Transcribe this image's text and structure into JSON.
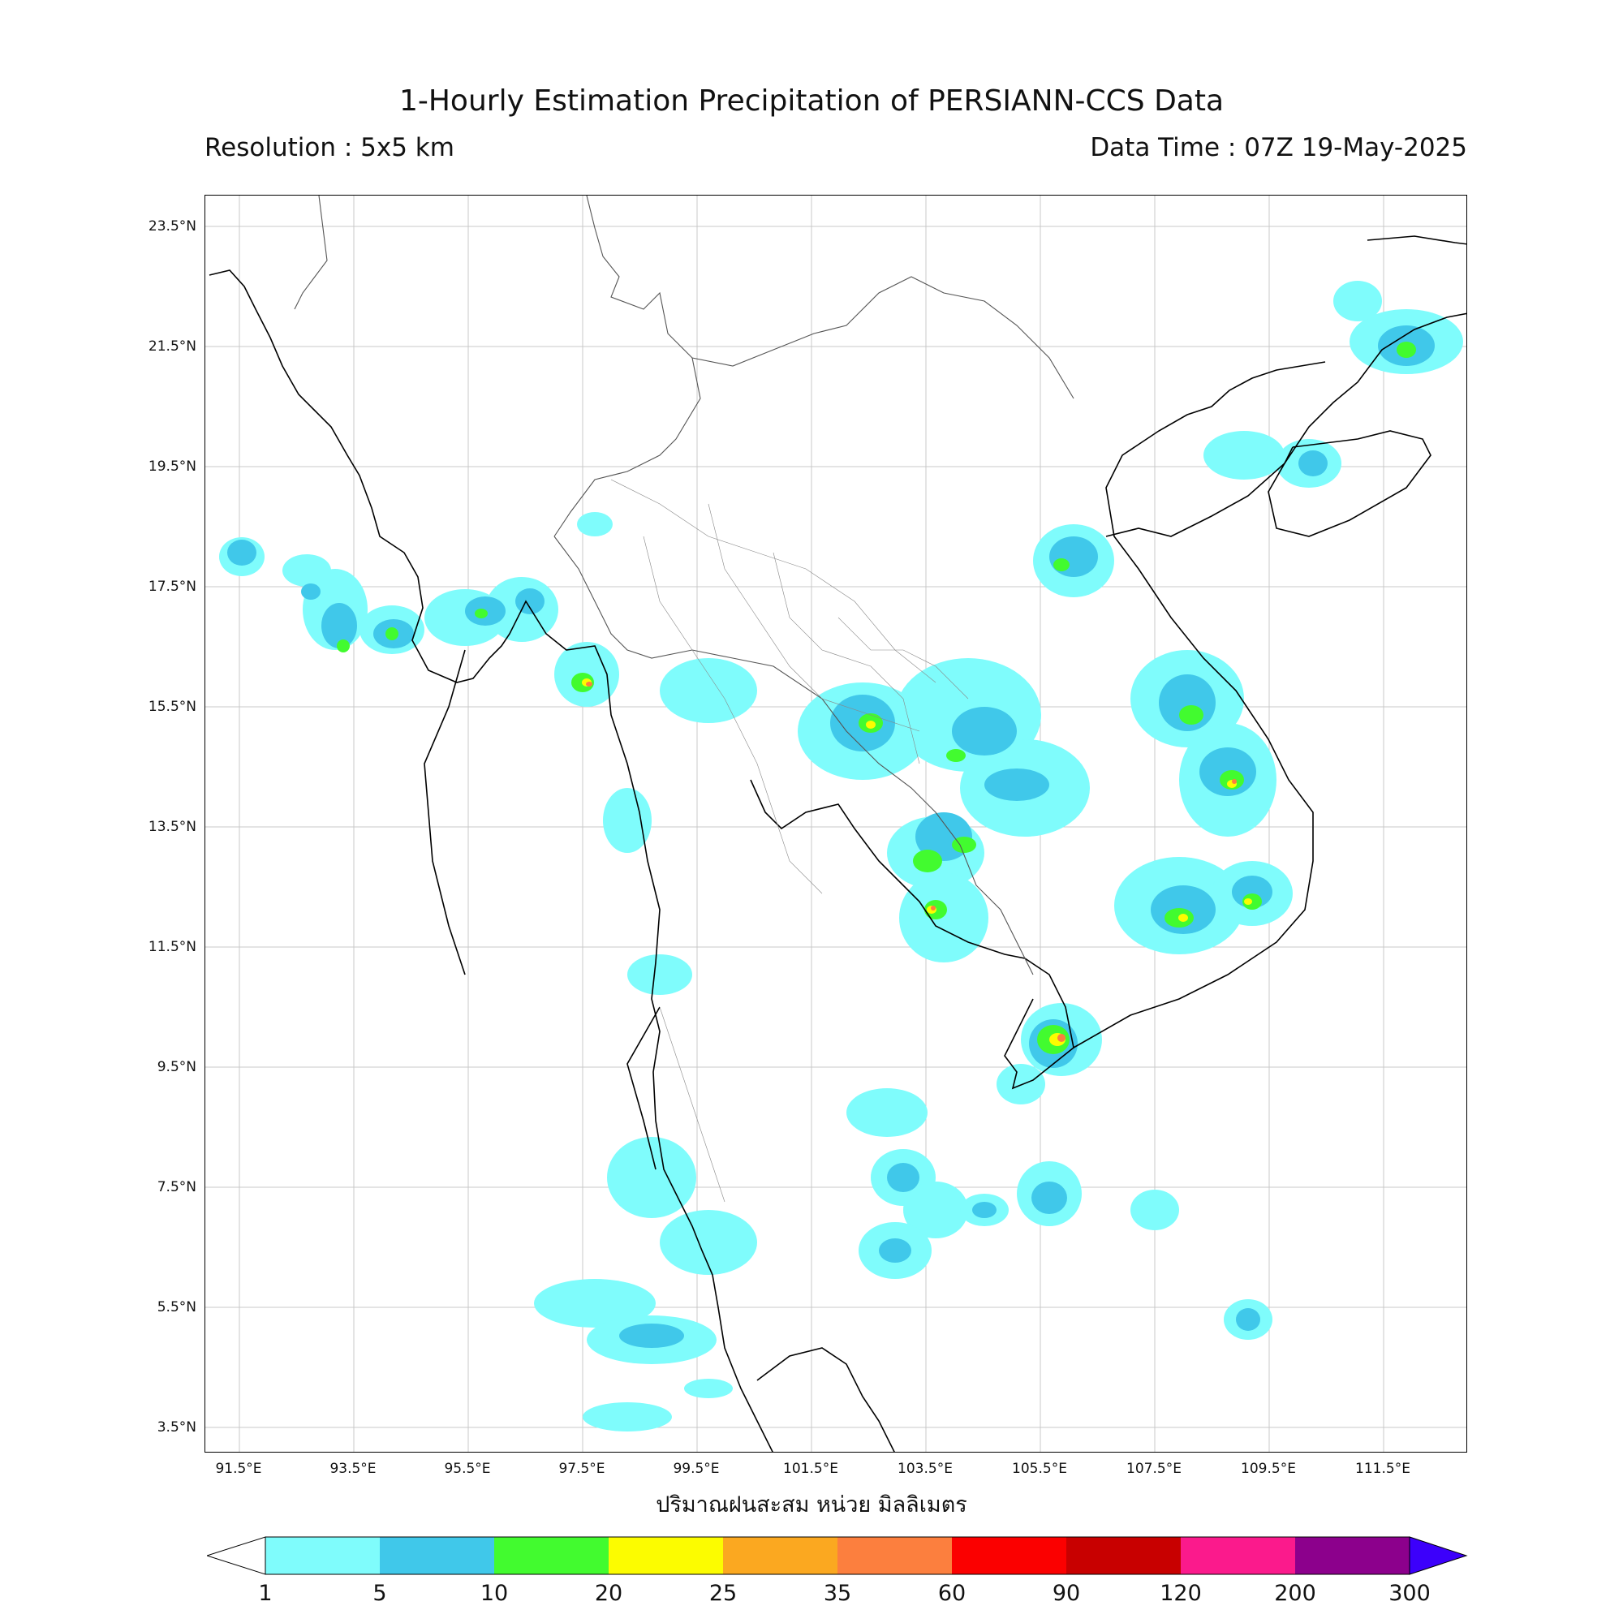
{
  "title": "1-Hourly Estimation Precipitation of PERSIANN-CCS Data",
  "resolution": "Resolution : 5x5 km",
  "data_time": "Data Time : 07Z 19-May-2025",
  "xlabel": "ปริมาณฝนสะสม หน่วย มิลลิเมตร",
  "lat_ticks": [
    "23.5°N",
    "21.5°N",
    "19.5°N",
    "17.5°N",
    "15.5°N",
    "13.5°N",
    "11.5°N",
    "9.5°N",
    "7.5°N",
    "5.5°N",
    "3.5°N"
  ],
  "lon_ticks": [
    "91.5°E",
    "93.5°E",
    "95.5°E",
    "97.5°E",
    "99.5°E",
    "101.5°E",
    "103.5°E",
    "105.5°E",
    "107.5°E",
    "109.5°E",
    "111.5°E"
  ],
  "colorbar": {
    "labels": [
      "1",
      "5",
      "10",
      "20",
      "25",
      "35",
      "60",
      "90",
      "120",
      "200",
      "300"
    ],
    "colors": [
      "#7ffcfc",
      "#40c8ea",
      "#42fb2f",
      "#fcfc00",
      "#fba820",
      "#fc7f3e",
      "#fb0000",
      "#c80000",
      "#fb1a8c",
      "#8c008c",
      "#3c00fb"
    ]
  }
}
